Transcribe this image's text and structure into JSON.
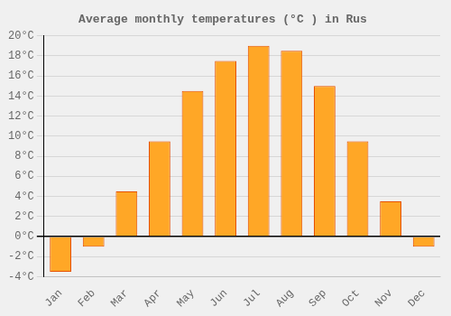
{
  "chart_data": {
    "type": "bar",
    "title": "Average monthly temperatures (°C ) in Rus",
    "categories": [
      "Jan",
      "Feb",
      "Mar",
      "Apr",
      "May",
      "Jun",
      "Jul",
      "Aug",
      "Sep",
      "Oct",
      "Nov",
      "Dec"
    ],
    "values": [
      -3.5,
      -1.0,
      4.5,
      9.5,
      14.5,
      17.5,
      19.0,
      18.5,
      15.0,
      9.5,
      3.5,
      -1.0
    ],
    "color": "#FFA726",
    "ylim": [
      -4,
      20
    ],
    "yticks": [
      {
        "value": -4,
        "label": "-4°C"
      },
      {
        "value": -2,
        "label": "-2°C"
      },
      {
        "value": 0,
        "label": "0°C"
      },
      {
        "value": 2,
        "label": "2°C"
      },
      {
        "value": 4,
        "label": "4°C"
      },
      {
        "value": 6,
        "label": "6°C"
      },
      {
        "value": 8,
        "label": "8°C"
      },
      {
        "value": 10,
        "label": "10°C"
      },
      {
        "value": 12,
        "label": "12°C"
      },
      {
        "value": 14,
        "label": "14°C"
      },
      {
        "value": 16,
        "label": "16°C"
      },
      {
        "value": 18,
        "label": "18°C"
      },
      {
        "value": 20,
        "label": "20°C"
      }
    ],
    "grid": true
  }
}
